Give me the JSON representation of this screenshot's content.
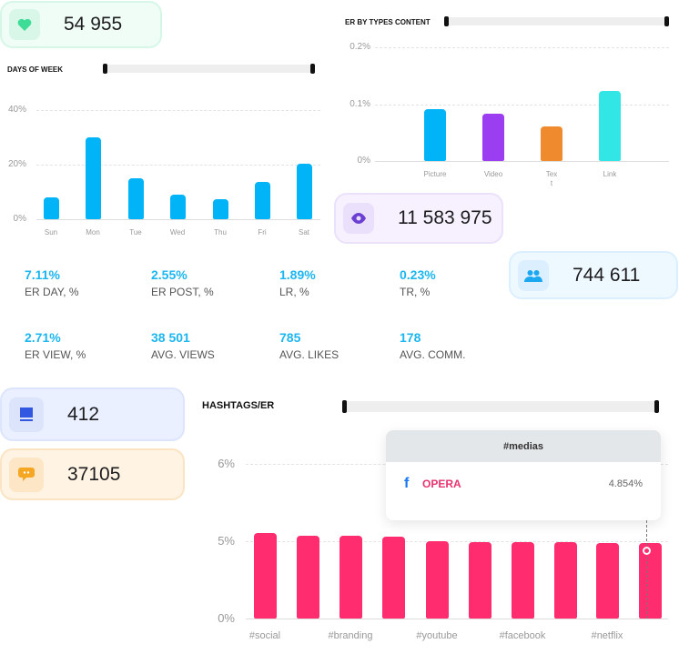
{
  "cards": {
    "likes": {
      "value": "54 955",
      "icon": "heart-icon",
      "color": "#3ddc97"
    },
    "views": {
      "value": "11 583 975",
      "icon": "eye-icon",
      "color": "#6a3fd1"
    },
    "followers": {
      "value": "744 611",
      "icon": "users-icon",
      "color": "#1ca8f0"
    },
    "posts": {
      "value": "412",
      "icon": "book-icon",
      "color": "#3257e0"
    },
    "comments": {
      "value": "37105",
      "icon": "chat-bubble-icon",
      "color": "#f5a623"
    }
  },
  "days_chart": {
    "title": "DAYS OF WEEK"
  },
  "types_chart": {
    "title": "ER BY TYPES CONTENT"
  },
  "hashtags_chart": {
    "title": "HASHTAGS/ER"
  },
  "stats": [
    {
      "value": "7.11%",
      "label": "ER DAY, %"
    },
    {
      "value": "2.55%",
      "label": "ER POST, %"
    },
    {
      "value": "1.89%",
      "label": "LR, %"
    },
    {
      "value": "0.23%",
      "label": "TR, %"
    },
    {
      "value": "2.71%",
      "label": "ER VIEW, %"
    },
    {
      "value": "38 501",
      "label": "AVG. VIEWS"
    },
    {
      "value": "785",
      "label": "AVG. LIKES"
    },
    {
      "value": "178",
      "label": "AVG. COMM."
    }
  ],
  "tooltip": {
    "title": "#medias",
    "icon": "facebook-icon",
    "name": "OPERA",
    "value": "4.854%"
  },
  "chart_data": [
    {
      "type": "bar",
      "title": "DAYS OF WEEK",
      "categories": [
        "Sun",
        "Mon",
        "Tue",
        "Wed",
        "Thu",
        "Fri",
        "Sat"
      ],
      "values": [
        8,
        30,
        15,
        9,
        7.3,
        13.7,
        20.3
      ],
      "yticks": [
        "0%",
        "20%",
        "40%"
      ],
      "ylim": [
        0,
        40
      ],
      "color": "#00b4f7",
      "grid": true
    },
    {
      "type": "bar",
      "title": "ER BY TYPES CONTENT",
      "categories": [
        "Picture",
        "Video",
        "Tex\nt",
        "Link"
      ],
      "values": [
        0.092,
        0.084,
        0.061,
        0.124
      ],
      "yticks": [
        "0%",
        "0.1%",
        "0.2%"
      ],
      "ylim": [
        0,
        0.2
      ],
      "colors": [
        "#00b4f7",
        "#9b3df0",
        "#ef8a2e",
        "#33e6e6"
      ],
      "grid": true
    },
    {
      "type": "bar",
      "title": "HASHTAGS/ER",
      "categories": [
        "#social",
        "",
        "#branding",
        "",
        "#youtube",
        "",
        "#facebook",
        "",
        "#netflix",
        ""
      ],
      "values": [
        5.11,
        5.07,
        5.07,
        5.06,
        4.98,
        4.94,
        4.92,
        4.92,
        4.87,
        4.854
      ],
      "yticks": [
        "0%",
        "5%",
        "6%"
      ],
      "ytick_values": [
        0,
        5,
        6
      ],
      "color": "#ff2d6f",
      "grid": true
    }
  ]
}
